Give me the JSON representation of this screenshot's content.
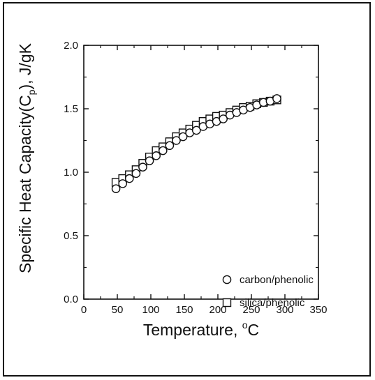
{
  "chart_data": {
    "type": "scatter",
    "title": "",
    "xlabel": "Temperature, ",
    "xlabel_unit": "C",
    "xlabel_unit_prefix": "o",
    "ylabel": "Specific Heat Capacity(C",
    "ylabel_sub": "p",
    "ylabel_end": "), J/gK",
    "xlim": [
      0,
      350
    ],
    "ylim": [
      0.0,
      2.0
    ],
    "xticks": [
      "0",
      "50",
      "100",
      "150",
      "200",
      "250",
      "300",
      "350"
    ],
    "yticks": [
      "0.0",
      "0.5",
      "1.0",
      "1.5",
      "2.0"
    ],
    "grid": false,
    "legend_position": "bottom-right",
    "series": [
      {
        "name": "carbon/phenolic",
        "marker": "circle",
        "x": [
          48,
          58,
          68,
          78,
          88,
          98,
          108,
          118,
          128,
          138,
          148,
          158,
          168,
          178,
          188,
          198,
          208,
          218,
          228,
          238,
          248,
          258,
          268,
          278,
          288
        ],
        "y": [
          0.87,
          0.91,
          0.95,
          0.99,
          1.04,
          1.09,
          1.13,
          1.17,
          1.21,
          1.25,
          1.28,
          1.31,
          1.33,
          1.36,
          1.38,
          1.4,
          1.42,
          1.45,
          1.47,
          1.49,
          1.51,
          1.53,
          1.55,
          1.56,
          1.58
        ]
      },
      {
        "name": "silica/phenolic",
        "marker": "square",
        "x": [
          48,
          58,
          68,
          78,
          88,
          98,
          108,
          118,
          128,
          138,
          148,
          158,
          168,
          178,
          188,
          198,
          208,
          218,
          228,
          238,
          248,
          258,
          268,
          278,
          288
        ],
        "y": [
          0.92,
          0.95,
          0.98,
          1.02,
          1.07,
          1.12,
          1.17,
          1.2,
          1.24,
          1.28,
          1.31,
          1.34,
          1.37,
          1.4,
          1.42,
          1.44,
          1.45,
          1.47,
          1.49,
          1.51,
          1.52,
          1.54,
          1.55,
          1.56,
          1.57
        ]
      }
    ]
  }
}
